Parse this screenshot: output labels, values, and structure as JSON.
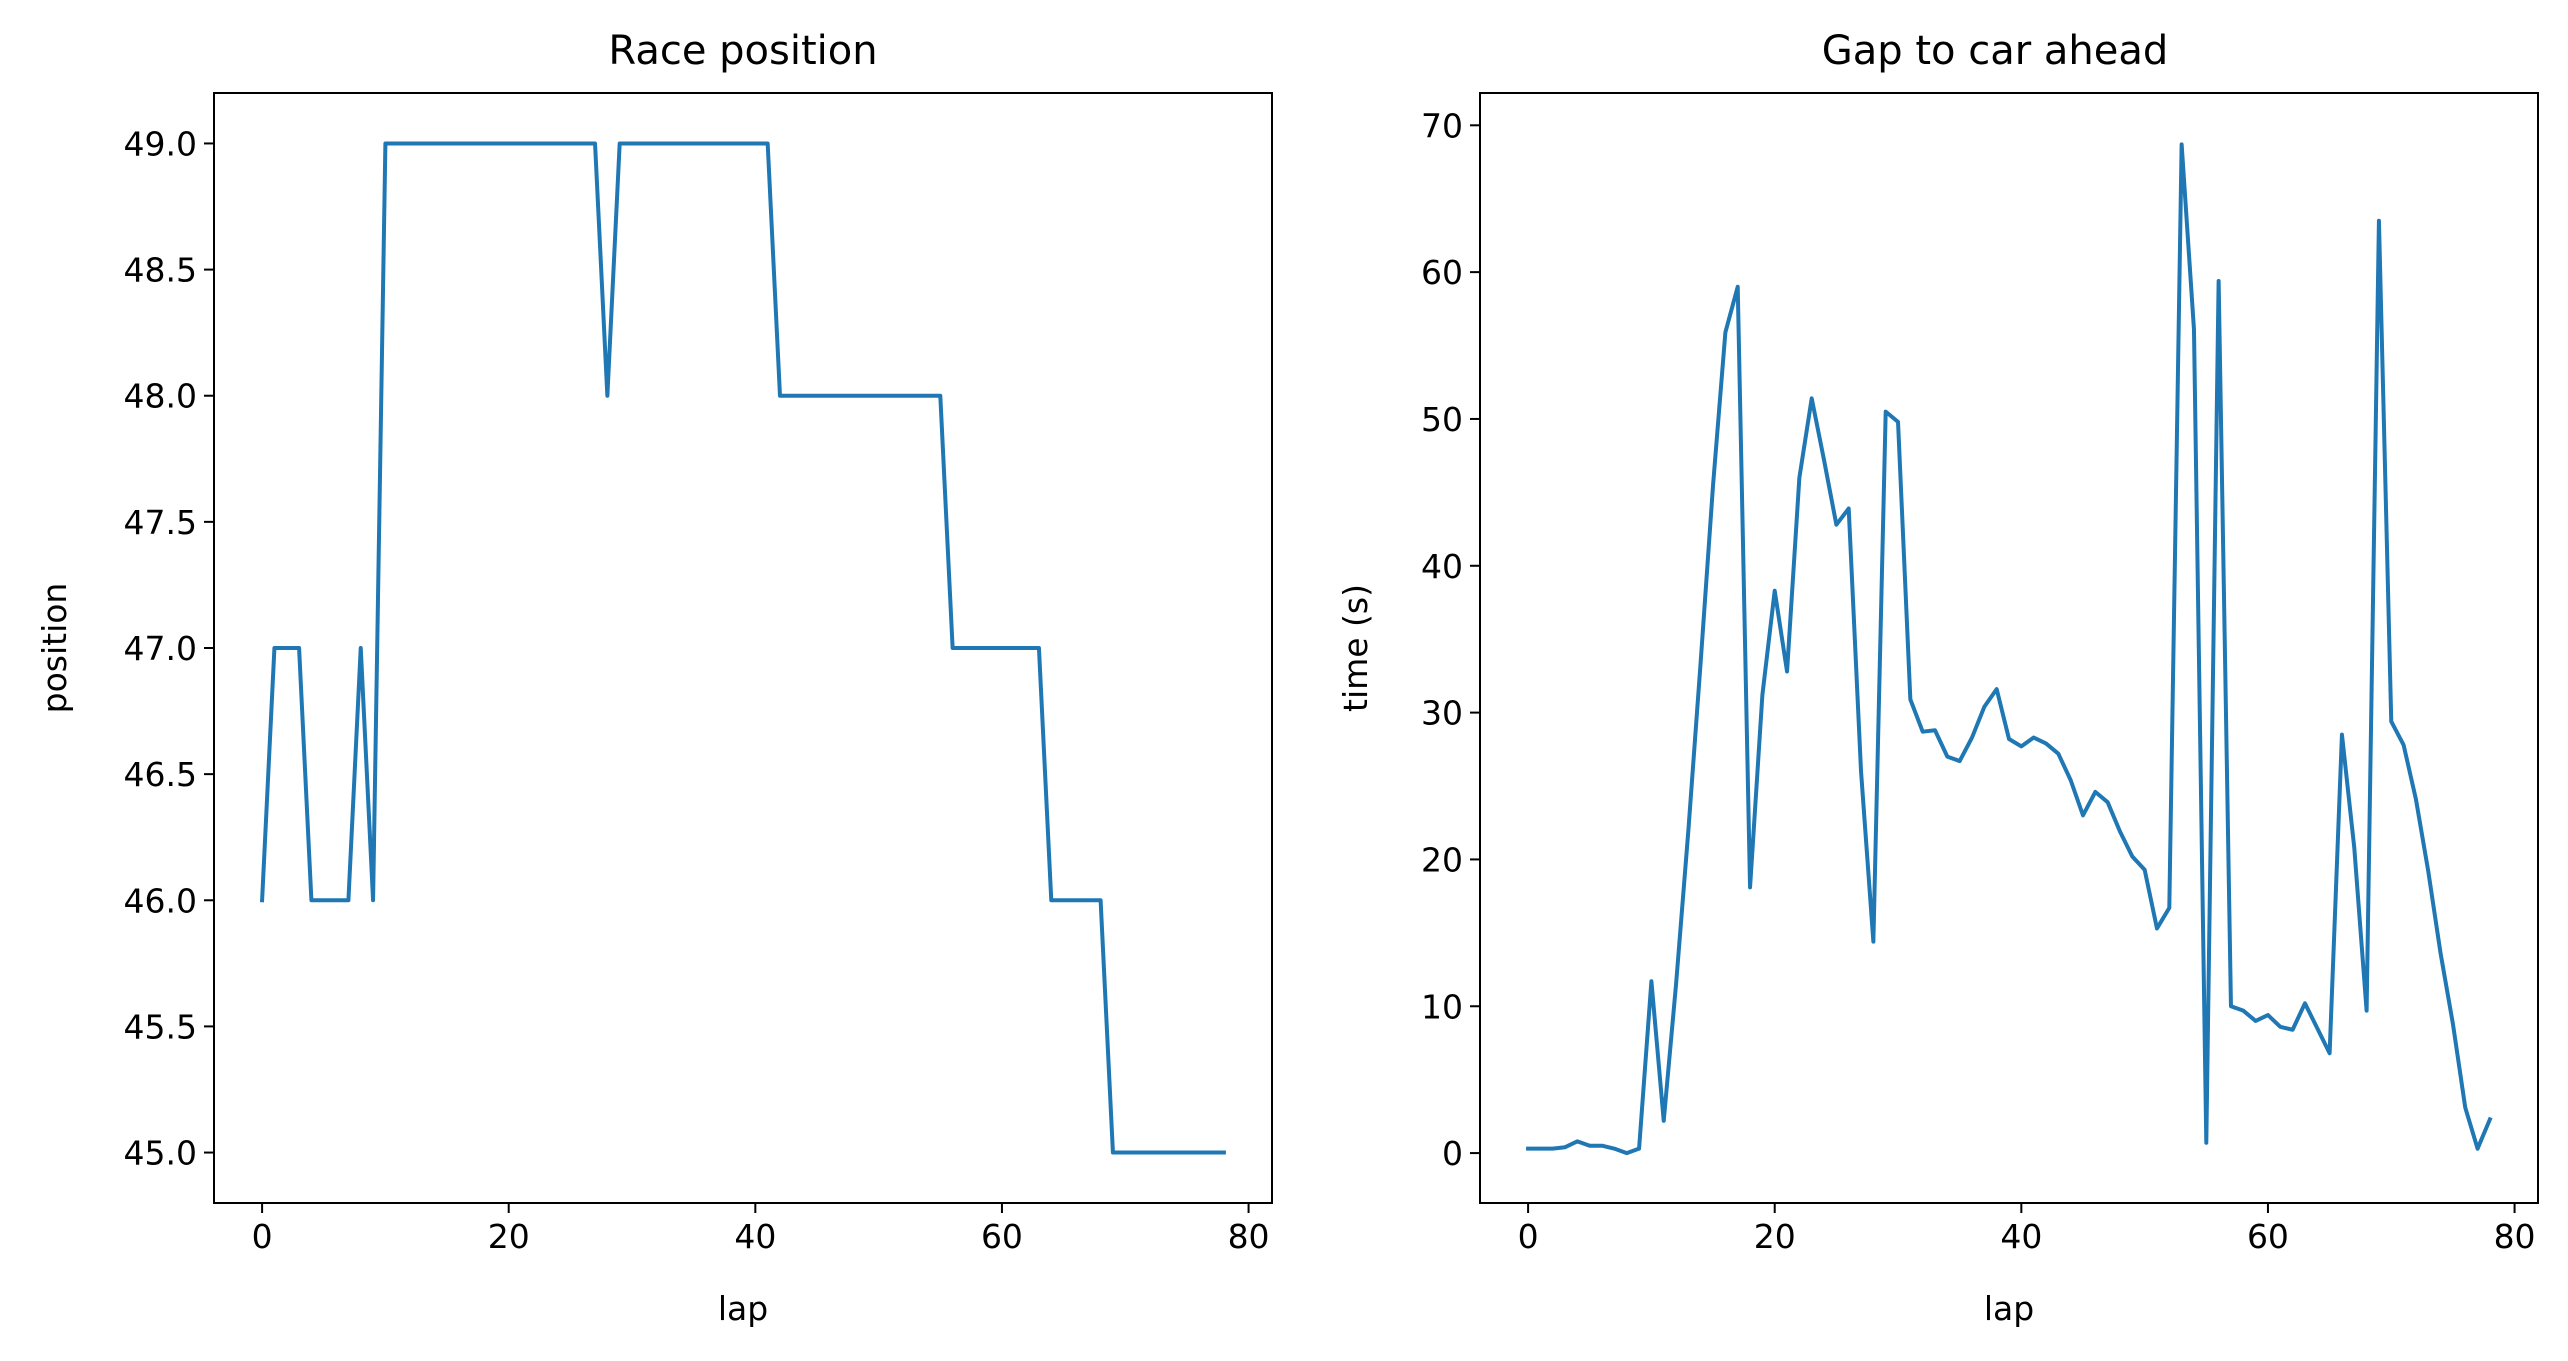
{
  "chart_data": [
    {
      "type": "line",
      "title": "Race position",
      "xlabel": "lap",
      "ylabel": "position",
      "xlim": [
        -3.9,
        81.9
      ],
      "ylim": [
        44.8,
        49.2
      ],
      "xticks": [
        0,
        20,
        40,
        60,
        80
      ],
      "xtick_labels": [
        "0",
        "20",
        "40",
        "60",
        "80"
      ],
      "yticks": [
        45.0,
        45.5,
        46.0,
        46.5,
        47.0,
        47.5,
        48.0,
        48.5,
        49.0
      ],
      "ytick_labels": [
        "45.0",
        "45.5",
        "46.0",
        "46.5",
        "47.0",
        "47.5",
        "48.0",
        "48.5",
        "49.0"
      ],
      "grid": false,
      "color": "#1f77b4",
      "series": [
        {
          "x": [
            0,
            1,
            2,
            3,
            4,
            5,
            6,
            7,
            8,
            9,
            10,
            11,
            12,
            13,
            14,
            15,
            16,
            17,
            18,
            19,
            20,
            21,
            22,
            23,
            24,
            25,
            26,
            27,
            28,
            29,
            30,
            31,
            32,
            33,
            34,
            35,
            36,
            37,
            38,
            39,
            40,
            41,
            42,
            43,
            44,
            45,
            46,
            47,
            48,
            49,
            50,
            51,
            52,
            53,
            54,
            55,
            56,
            57,
            58,
            59,
            60,
            61,
            62,
            63,
            64,
            65,
            66,
            67,
            68,
            69,
            70,
            71,
            72,
            73,
            74,
            75,
            76,
            77,
            78
          ],
          "values": [
            46,
            47,
            47,
            47,
            46,
            46,
            46,
            46,
            47,
            46,
            49,
            49,
            49,
            49,
            49,
            49,
            49,
            49,
            49,
            49,
            49,
            49,
            49,
            49,
            49,
            49,
            49,
            49,
            48,
            49,
            49,
            49,
            49,
            49,
            49,
            49,
            49,
            49,
            49,
            49,
            49,
            49,
            48,
            48,
            48,
            48,
            48,
            48,
            48,
            48,
            48,
            48,
            48,
            48,
            48,
            48,
            47,
            47,
            47,
            47,
            47,
            47,
            47,
            47,
            46,
            46,
            46,
            46,
            46,
            45,
            45,
            45,
            45,
            45,
            45,
            45,
            45,
            45,
            45
          ]
        }
      ]
    },
    {
      "type": "line",
      "title": "Gap to car ahead",
      "xlabel": "lap",
      "ylabel": "time (s)",
      "xlim": [
        -3.9,
        81.9
      ],
      "ylim": [
        -3.4,
        72.2
      ],
      "xticks": [
        0,
        20,
        40,
        60,
        80
      ],
      "xtick_labels": [
        "0",
        "20",
        "40",
        "60",
        "80"
      ],
      "yticks": [
        0,
        10,
        20,
        30,
        40,
        50,
        60,
        70
      ],
      "ytick_labels": [
        "0",
        "10",
        "20",
        "30",
        "40",
        "50",
        "60",
        "70"
      ],
      "grid": false,
      "color": "#1f77b4",
      "series": [
        {
          "x": [
            0,
            1,
            2,
            3,
            4,
            5,
            6,
            7,
            8,
            9,
            10,
            11,
            12,
            13,
            14,
            15,
            16,
            17,
            18,
            19,
            20,
            21,
            22,
            23,
            24,
            25,
            26,
            27,
            28,
            29,
            30,
            31,
            32,
            33,
            34,
            35,
            36,
            37,
            38,
            39,
            40,
            41,
            42,
            43,
            44,
            45,
            46,
            47,
            48,
            49,
            50,
            51,
            52,
            53,
            54,
            55,
            56,
            57,
            58,
            59,
            60,
            61,
            62,
            63,
            64,
            65,
            66,
            67,
            68,
            69,
            70,
            71,
            72,
            73,
            74,
            75,
            76,
            77,
            78
          ],
          "values": [
            0.3,
            0.3,
            0.3,
            0.4,
            0.8,
            0.5,
            0.5,
            0.3,
            0.0,
            0.3,
            11.7,
            2.2,
            11.5,
            22.0,
            33.5,
            45.5,
            55.9,
            59.0,
            18.1,
            31.2,
            38.3,
            32.8,
            46.0,
            51.4,
            47.2,
            42.8,
            43.9,
            26.0,
            14.4,
            50.5,
            49.8,
            30.9,
            28.7,
            28.8,
            27.0,
            26.7,
            28.3,
            30.4,
            31.6,
            28.2,
            27.7,
            28.3,
            27.9,
            27.2,
            25.4,
            23.0,
            24.6,
            23.9,
            21.9,
            20.2,
            19.3,
            15.3,
            16.7,
            68.7,
            56.1,
            0.7,
            59.4,
            10.0,
            9.7,
            9.0,
            9.4,
            8.6,
            8.4,
            10.2,
            8.5,
            6.8,
            28.5,
            20.8,
            9.7,
            63.5,
            29.4,
            27.8,
            24.1,
            19.2,
            13.6,
            8.8,
            3.1,
            0.3,
            2.3
          ]
        }
      ]
    }
  ]
}
